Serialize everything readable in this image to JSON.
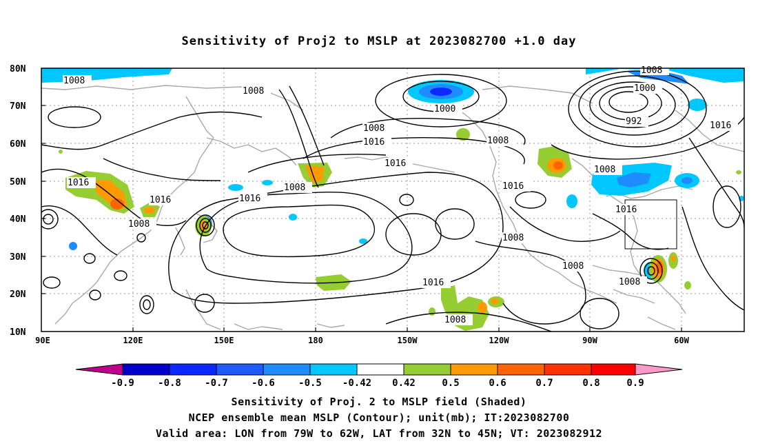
{
  "title": "Sensitivity of Proj2 to MSLP at 2023082700 +1.0 day",
  "axes": {
    "lat_labels": [
      "80N",
      "70N",
      "60N",
      "50N",
      "40N",
      "30N",
      "20N",
      "10N"
    ],
    "lon_labels": [
      "90E",
      "120E",
      "150E",
      "180",
      "150W",
      "120W",
      "90W",
      "60W"
    ]
  },
  "colorbar": {
    "labels": [
      "-0.9",
      "-0.8",
      "-0.7",
      "-0.6",
      "-0.5",
      "-0.42",
      "0.42",
      "0.5",
      "0.6",
      "0.7",
      "0.8",
      "0.9"
    ],
    "colors": [
      "#c0008a",
      "#0000c8",
      "#0a28ff",
      "#1e5aff",
      "#1e8cff",
      "#00c8ff",
      "#ffffff",
      "#96cd32",
      "#ff9b00",
      "#ff6400",
      "#ff3200",
      "#ff0000",
      "#ff9ac6"
    ]
  },
  "contour_labels": [
    "1008",
    "1008",
    "1000",
    "1008",
    "1016",
    "1008",
    "1008",
    "1000",
    "992",
    "1016",
    "1016",
    "1016",
    "1008",
    "1016",
    "1008",
    "1016",
    "1008",
    "1016",
    "1008",
    "1008",
    "1016",
    "1008",
    "1016",
    "1008"
  ],
  "footer": {
    "line1": "Sensitivity of Proj. 2 to MSLP field (Shaded)",
    "line2": "NCEP ensemble mean MSLP (Contour); unit(mb); IT:2023082700",
    "line3": "Valid area: LON from 79W to 62W, LAT from 32N to 45N; VT: 2023082912"
  }
}
